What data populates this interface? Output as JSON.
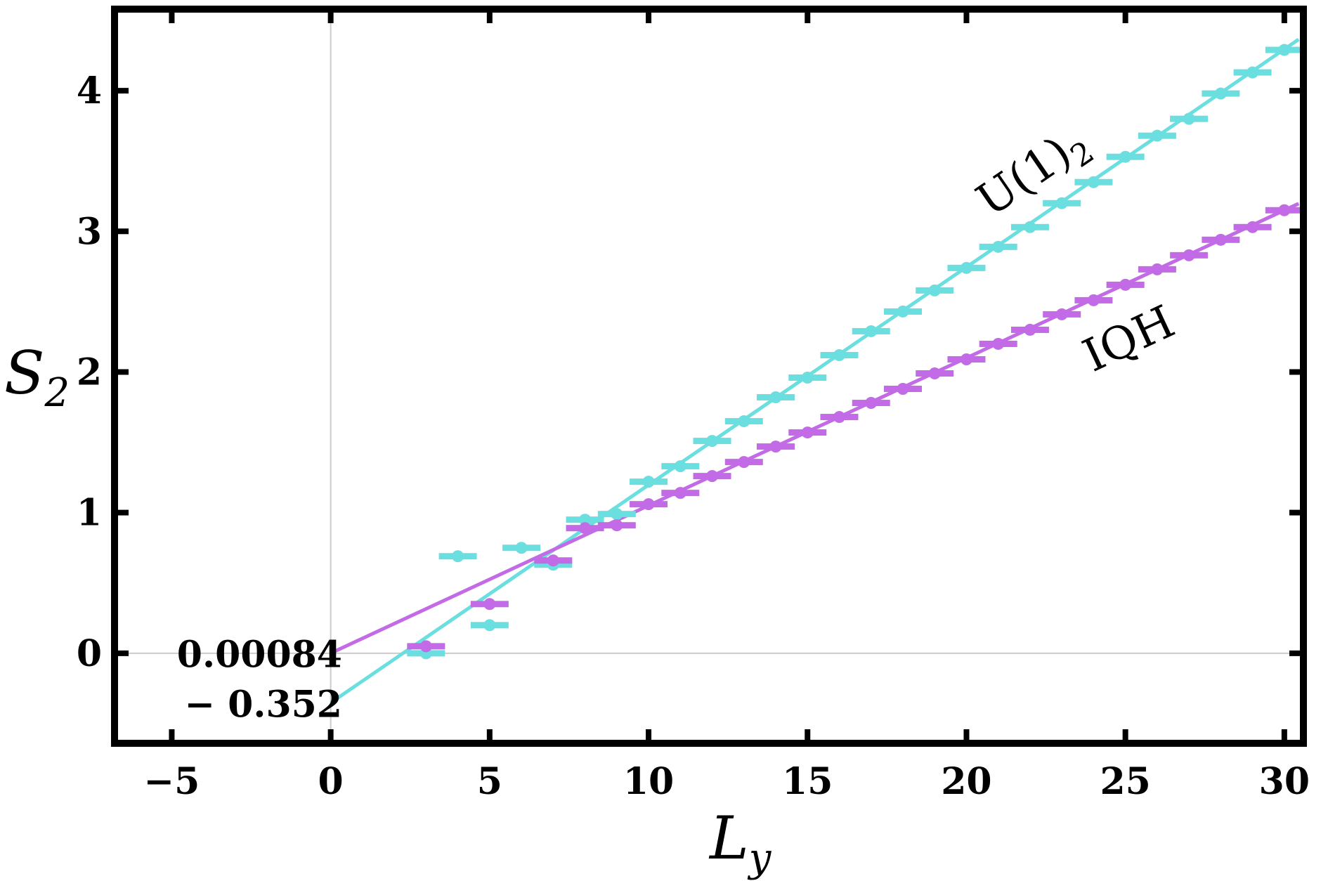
{
  "chart_data": {
    "type": "scatter",
    "xlabel": "L",
    "xlabel_sub": "y",
    "ylabel": "S",
    "ylabel_sub": "2",
    "xlim": [
      -6.8,
      30.6
    ],
    "ylim": [
      -0.64,
      4.58
    ],
    "x_ticks": [
      -5,
      0,
      5,
      10,
      15,
      20,
      25,
      30
    ],
    "x_tick_labels": [
      "−5",
      "0",
      "5",
      "10",
      "15",
      "20",
      "25",
      "30"
    ],
    "y_ticks": [
      0,
      1,
      2,
      3,
      4
    ],
    "y_tick_labels": [
      "0",
      "1",
      "2",
      "3",
      "4"
    ],
    "intercept_labels": [
      {
        "text": "0.00084",
        "series": "IQH"
      },
      {
        "text": "− 0.352",
        "series": "U(1)_2"
      }
    ],
    "series": [
      {
        "name": "U(1)_2",
        "label": "U(1)",
        "label_sub": "2",
        "color": "#6bdedf",
        "fit": {
          "slope": 0.1549,
          "intercept": -0.352
        },
        "x": [
          3,
          4,
          5,
          6,
          7,
          8,
          9,
          10,
          11,
          12,
          13,
          14,
          15,
          16,
          17,
          18,
          19,
          20,
          21,
          22,
          23,
          24,
          25,
          26,
          27,
          28,
          29,
          30
        ],
        "y": [
          0.0,
          0.69,
          0.2,
          0.75,
          0.63,
          0.95,
          0.99,
          1.22,
          1.33,
          1.51,
          1.65,
          1.82,
          1.96,
          2.12,
          2.29,
          2.43,
          2.58,
          2.74,
          2.89,
          3.03,
          3.2,
          3.35,
          3.53,
          3.68,
          3.8,
          3.98,
          4.13,
          4.29
        ]
      },
      {
        "name": "IQH",
        "label": "IQH",
        "color": "#c36ae6",
        "fit": {
          "slope": 0.10497,
          "intercept": 0.00084
        },
        "x": [
          3,
          5,
          7,
          8,
          9,
          10,
          11,
          12,
          13,
          14,
          15,
          16,
          17,
          18,
          19,
          20,
          21,
          22,
          23,
          24,
          25,
          26,
          27,
          28,
          29,
          30
        ],
        "y": [
          0.05,
          0.35,
          0.66,
          0.89,
          0.91,
          1.06,
          1.14,
          1.26,
          1.36,
          1.47,
          1.57,
          1.68,
          1.78,
          1.88,
          1.99,
          2.09,
          2.2,
          2.3,
          2.41,
          2.51,
          2.62,
          2.73,
          2.83,
          2.94,
          3.03,
          3.15
        ]
      }
    ]
  }
}
